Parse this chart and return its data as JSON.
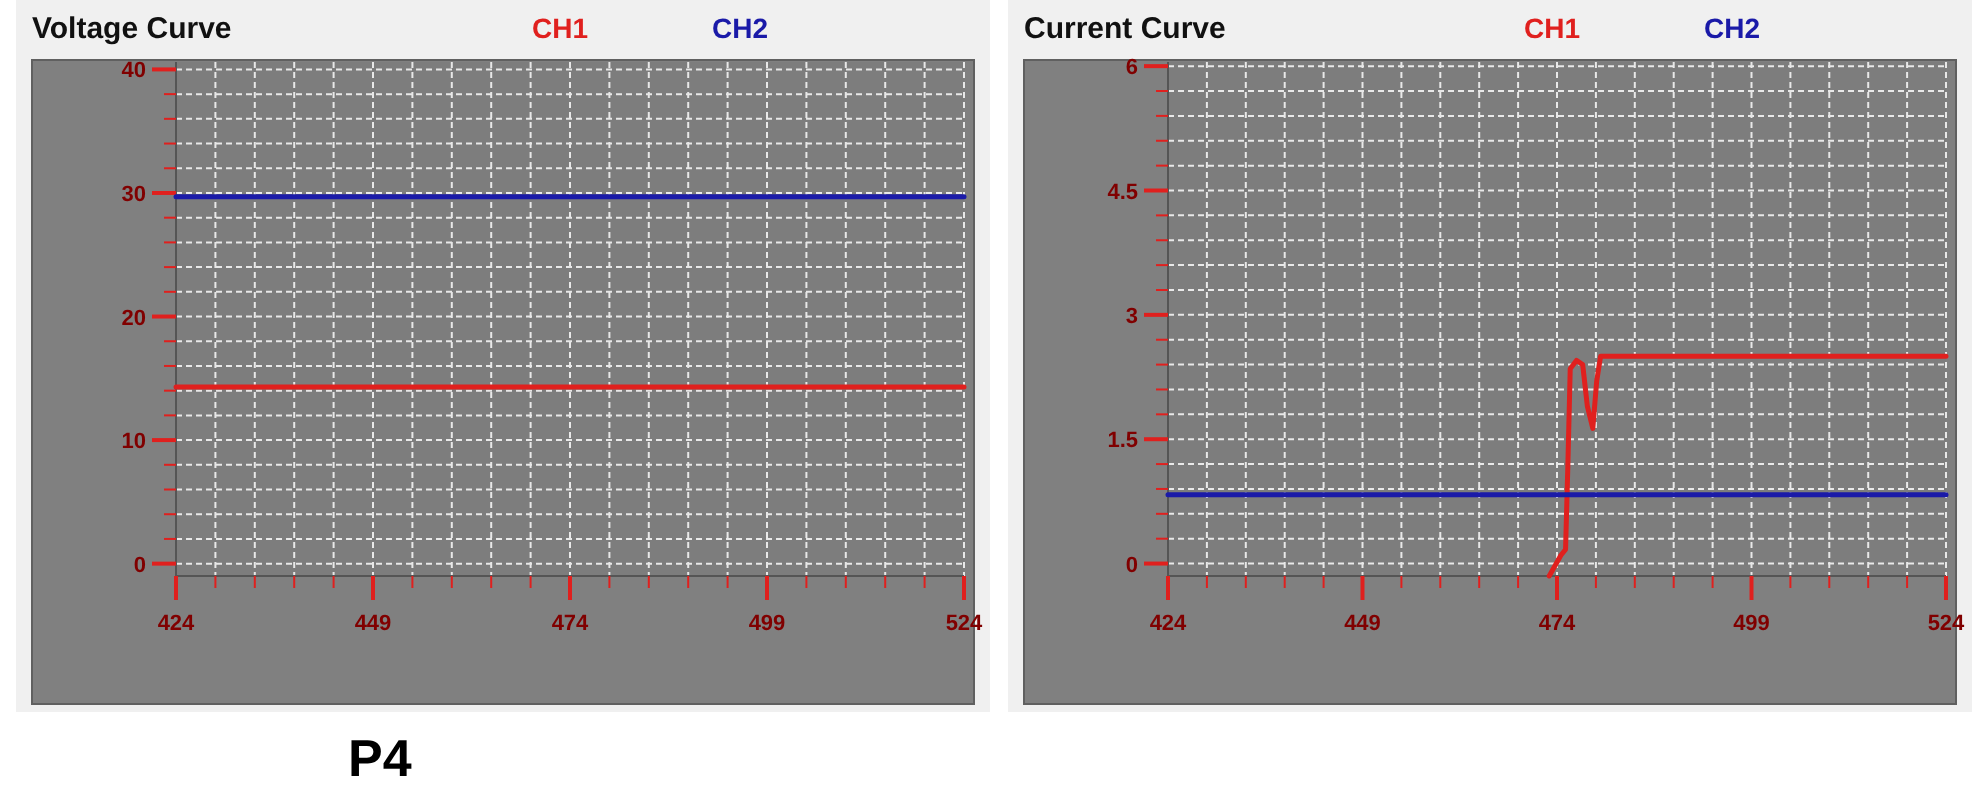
{
  "chart_data": [
    {
      "type": "line",
      "title": "Voltage Curve",
      "legend": "top",
      "grid": true,
      "line_style": "solid",
      "annotations": [
        "P4"
      ],
      "xlim": [
        424,
        524
      ],
      "xticks": [
        424,
        {
          "value": 429,
          "label": null
        },
        {
          "value": 434,
          "label": null
        },
        {
          "value": 439,
          "label": null
        },
        {
          "value": 444,
          "label": null
        },
        449,
        {
          "value": 454,
          "label": null
        },
        {
          "value": 459,
          "label": null
        },
        {
          "value": 464,
          "label": null
        },
        {
          "value": 469,
          "label": null
        },
        474,
        {
          "value": 479,
          "label": null
        },
        {
          "value": 484,
          "label": null
        },
        {
          "value": 489,
          "label": null
        },
        {
          "value": 494,
          "label": null
        },
        499,
        {
          "value": 504,
          "label": null
        },
        {
          "value": 509,
          "label": null
        },
        {
          "value": 514,
          "label": null
        },
        {
          "value": 519,
          "label": null
        },
        524
      ],
      "ylim": [
        -1,
        40.6
      ],
      "yticks": [
        0,
        {
          "value": 2,
          "label": null
        },
        {
          "value": 4,
          "label": null
        },
        {
          "value": 6,
          "label": null
        },
        {
          "value": 8,
          "label": null
        },
        10,
        {
          "value": 12,
          "label": null
        },
        {
          "value": 14,
          "label": null
        },
        {
          "value": 16,
          "label": null
        },
        {
          "value": 18,
          "label": null
        },
        20,
        {
          "value": 22,
          "label": null
        },
        {
          "value": 24,
          "label": null
        },
        {
          "value": 26,
          "label": null
        },
        {
          "value": 28,
          "label": null
        },
        30,
        {
          "value": 32,
          "label": null
        },
        {
          "value": 34,
          "label": null
        },
        {
          "value": 36,
          "label": null
        },
        {
          "value": 38,
          "label": null
        },
        40
      ],
      "series": [
        {
          "name": "CH1",
          "color": "#e0201e",
          "x": [
            424,
            524
          ],
          "values": [
            14.3,
            14.3
          ]
        },
        {
          "name": "CH2",
          "color": "#1a1aa8",
          "x": [
            424,
            524
          ],
          "values": [
            29.7,
            29.7
          ]
        }
      ]
    },
    {
      "type": "line",
      "title": "Current Curve",
      "legend": "top",
      "grid": true,
      "line_style": "solid",
      "xlim": [
        424,
        524
      ],
      "xticks": [
        424,
        {
          "value": 429,
          "label": null
        },
        {
          "value": 434,
          "label": null
        },
        {
          "value": 439,
          "label": null
        },
        {
          "value": 444,
          "label": null
        },
        449,
        {
          "value": 454,
          "label": null
        },
        {
          "value": 459,
          "label": null
        },
        {
          "value": 464,
          "label": null
        },
        {
          "value": 469,
          "label": null
        },
        474,
        {
          "value": 479,
          "label": null
        },
        {
          "value": 484,
          "label": null
        },
        {
          "value": 489,
          "label": null
        },
        {
          "value": 494,
          "label": null
        },
        499,
        {
          "value": 504,
          "label": null
        },
        {
          "value": 509,
          "label": null
        },
        {
          "value": 514,
          "label": null
        },
        {
          "value": 519,
          "label": null
        },
        524
      ],
      "ylim": [
        -0.15,
        6.05
      ],
      "yticks": [
        0,
        {
          "value": 0.3,
          "label": null
        },
        {
          "value": 0.6,
          "label": null
        },
        {
          "value": 0.9,
          "label": null
        },
        {
          "value": 1.2,
          "label": null
        },
        1.5,
        {
          "value": 1.8,
          "label": null
        },
        {
          "value": 2.1,
          "label": null
        },
        {
          "value": 2.4,
          "label": null
        },
        {
          "value": 2.7,
          "label": null
        },
        3,
        {
          "value": 3.3,
          "label": null
        },
        {
          "value": 3.6,
          "label": null
        },
        {
          "value": 3.9,
          "label": null
        },
        {
          "value": 4.2,
          "label": null
        },
        4.5,
        {
          "value": 4.8,
          "label": null
        },
        {
          "value": 5.1,
          "label": null
        },
        {
          "value": 5.4,
          "label": null
        },
        {
          "value": 5.7,
          "label": null
        },
        6
      ],
      "series": [
        {
          "name": "CH1",
          "color": "#e0201e",
          "x": [
            473,
            474.5,
            475.1,
            475.4,
            475.7,
            476.5,
            477.3,
            477.9,
            478.6,
            479.1,
            479.6,
            524
          ],
          "values": [
            -0.15,
            0.1,
            0.17,
            1.2,
            2.35,
            2.45,
            2.4,
            1.9,
            1.63,
            2.2,
            2.5,
            2.5
          ]
        },
        {
          "name": "CH2",
          "color": "#1a1aa8",
          "x": [
            424,
            524
          ],
          "values": [
            0.83,
            0.83
          ]
        }
      ]
    }
  ]
}
